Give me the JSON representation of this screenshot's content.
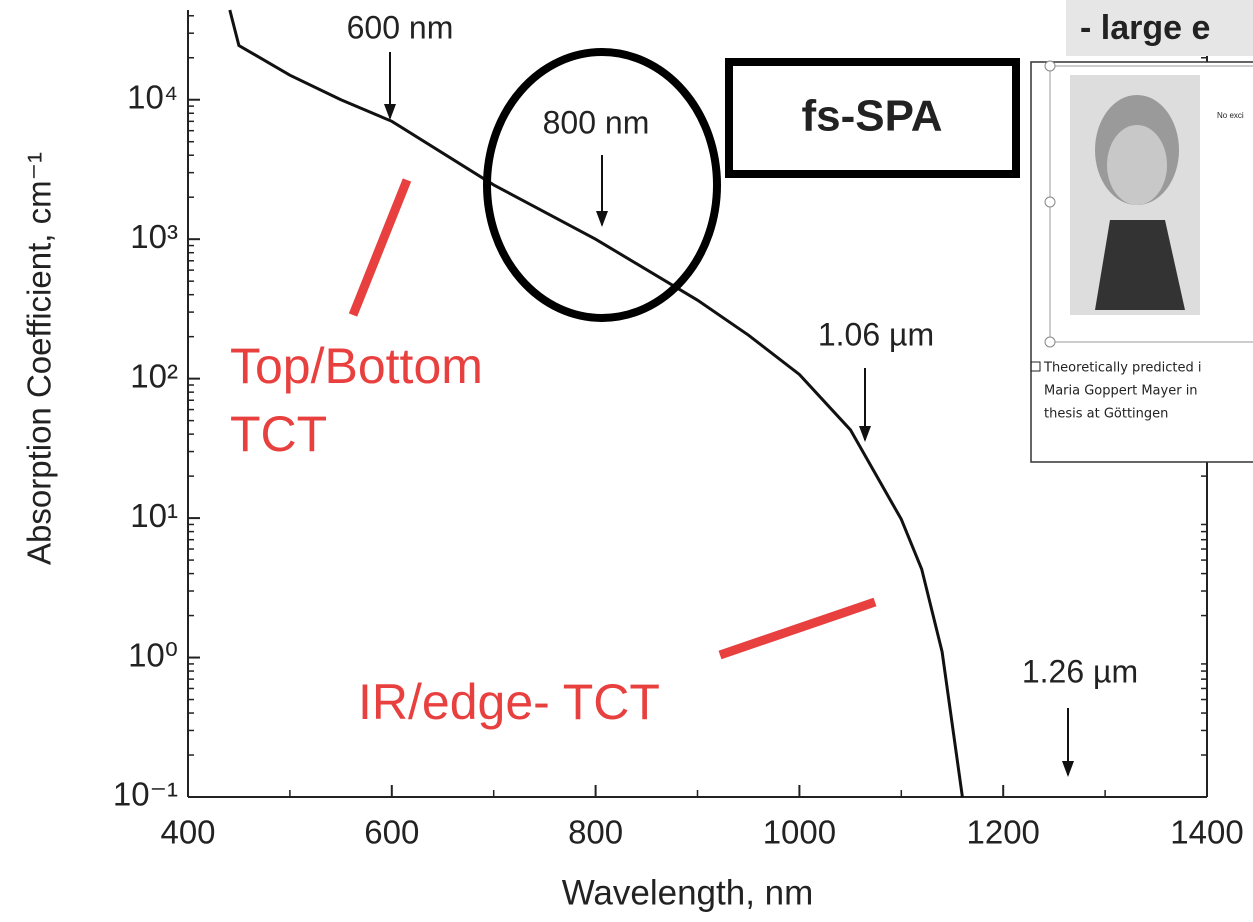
{
  "chart_data": {
    "type": "line",
    "xlabel": "Wavelength, nm",
    "ylabel": "Absorption Coefficient, cm⁻¹",
    "x": [
      441,
      450,
      500,
      550,
      600,
      700,
      800,
      900,
      950,
      1000,
      1050,
      1100,
      1120,
      1140,
      1160
    ],
    "values": [
      44000,
      24500,
      15000,
      10000,
      7000,
      2450,
      1000,
      365,
      205,
      107,
      43,
      9.8,
      4.3,
      1.1,
      0.1
    ],
    "color": "#111111",
    "log_y": true,
    "xlim": [
      400,
      1400
    ],
    "xticks": [
      400,
      600,
      800,
      1000,
      1200,
      1400
    ],
    "ylim": [
      0.1,
      44000
    ],
    "yticks": [
      {
        "value": 0.1,
        "label": "10⁻¹"
      },
      {
        "value": 1,
        "label": "10⁰"
      },
      {
        "value": 10,
        "label": "10¹"
      },
      {
        "value": 100,
        "label": "10²"
      },
      {
        "value": 1000,
        "label": "10³"
      },
      {
        "value": 10000,
        "label": "10⁴"
      }
    ],
    "annotations": [
      "600 nm",
      "800 nm",
      "1.06 µm",
      "1.26 µm",
      "Top/Bottom",
      "TCT",
      "IR/edge- TCT",
      "fs-SPA",
      "- large e"
    ]
  },
  "inset": {
    "heading": "No exci",
    "caption": [
      "Theoretically predicted i",
      "Maria Goppert Mayer in",
      "thesis at Göttingen"
    ]
  }
}
